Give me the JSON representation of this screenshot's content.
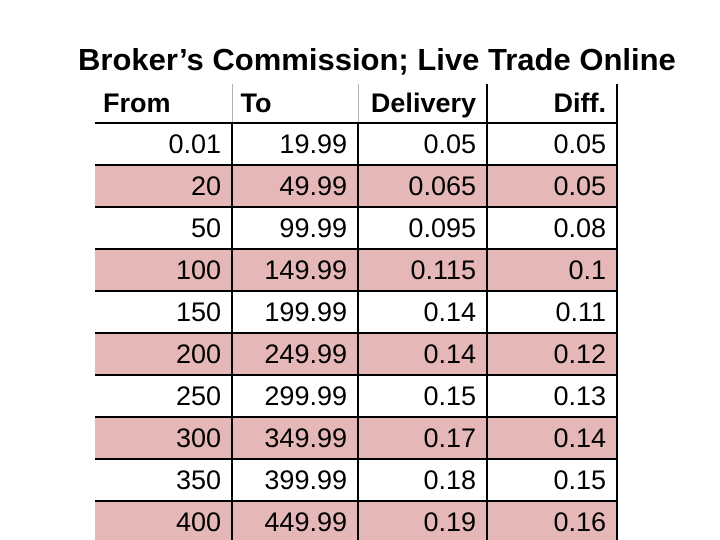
{
  "title": "Broker’s Commission; Live Trade Online",
  "colors": {
    "row_shade": "#e5b8b7",
    "border": "#000000",
    "header_gridline": "#b3b3b3",
    "background": "#ffffff"
  },
  "table": {
    "columns": [
      "From",
      "To",
      "Delivery",
      "Diff."
    ],
    "rows": [
      {
        "from": "0.01",
        "to": "19.99",
        "delivery": "0.05",
        "diff": "0.05",
        "shaded": false
      },
      {
        "from": "20",
        "to": "49.99",
        "delivery": "0.065",
        "diff": "0.05",
        "shaded": true
      },
      {
        "from": "50",
        "to": "99.99",
        "delivery": "0.095",
        "diff": "0.08",
        "shaded": false
      },
      {
        "from": "100",
        "to": "149.99",
        "delivery": "0.115",
        "diff": "0.1",
        "shaded": true
      },
      {
        "from": "150",
        "to": "199.99",
        "delivery": "0.14",
        "diff": "0.11",
        "shaded": false
      },
      {
        "from": "200",
        "to": "249.99",
        "delivery": "0.14",
        "diff": "0.12",
        "shaded": true
      },
      {
        "from": "250",
        "to": "299.99",
        "delivery": "0.15",
        "diff": "0.13",
        "shaded": false
      },
      {
        "from": "300",
        "to": "349.99",
        "delivery": "0.17",
        "diff": "0.14",
        "shaded": true
      },
      {
        "from": "350",
        "to": "399.99",
        "delivery": "0.18",
        "diff": "0.15",
        "shaded": false
      },
      {
        "from": "400",
        "to": "449.99",
        "delivery": "0.19",
        "diff": "0.16",
        "shaded": true
      }
    ]
  }
}
